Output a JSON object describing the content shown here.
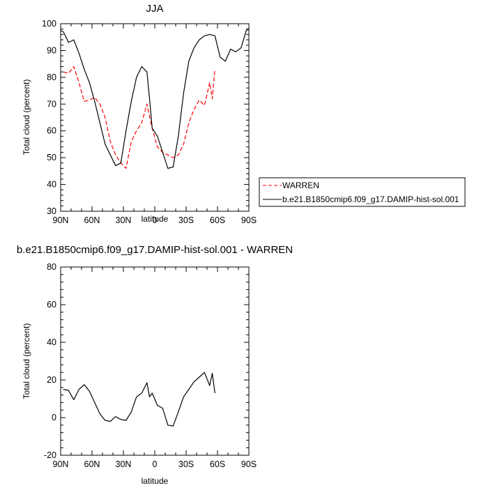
{
  "chart_data": [
    {
      "type": "line",
      "title": "JJA",
      "xlabel": "latitude",
      "ylabel": "Total cloud (percent)",
      "xlim": [
        -90,
        90
      ],
      "ylim": [
        30,
        100
      ],
      "x_ticks": [
        -90,
        -60,
        -30,
        0,
        30,
        60,
        90
      ],
      "x_tick_labels": [
        "90N",
        "60N",
        "30N",
        "0",
        "30S",
        "60S",
        "90S"
      ],
      "y_ticks": [
        30,
        40,
        50,
        60,
        70,
        80,
        90,
        100
      ],
      "legend": "right",
      "series": [
        {
          "name": "WARREN",
          "color": "#ff0000",
          "dash": "dashed",
          "x": [
            -87.5,
            -82.5,
            -77.5,
            -72.5,
            -67.5,
            -62.5,
            -57.5,
            -52.5,
            -47.5,
            -42.5,
            -37.5,
            -32.5,
            -27.5,
            -22.5,
            -17.5,
            -12.5,
            -7.5,
            -2.5,
            2.5,
            7.5,
            12.5,
            17.5,
            22.5,
            27.5,
            32.5,
            37.5,
            42.5,
            47.5,
            52.5,
            55.0,
            57.5
          ],
          "y": [
            82.0,
            81.5,
            84.0,
            78.0,
            71.0,
            71.5,
            72.5,
            70.0,
            65.0,
            56.0,
            51.0,
            48.0,
            46.0,
            56.0,
            60.0,
            63.0,
            70.0,
            61.0,
            54.0,
            52.0,
            51.0,
            50.0,
            51.0,
            55.0,
            63.0,
            68.0,
            71.5,
            69.5,
            78.0,
            72.0,
            83.0
          ]
        },
        {
          "name": "b.e21.B1850cmip6.f09_g17.DAMIP-hist-sol.001",
          "color": "#000000",
          "dash": "solid",
          "x": [
            -90,
            -87.5,
            -82.5,
            -77.5,
            -72.5,
            -67.5,
            -62.5,
            -57.5,
            -52.5,
            -47.5,
            -42.5,
            -37.5,
            -32.5,
            -27.5,
            -22.5,
            -17.5,
            -12.5,
            -7.5,
            -5.0,
            -2.5,
            2.5,
            7.5,
            12.5,
            17.5,
            22.5,
            27.5,
            32.5,
            37.5,
            42.5,
            47.5,
            52.5,
            57.5,
            62.5,
            67.5,
            72.5,
            77.5,
            82.5,
            87.5,
            90
          ],
          "y": [
            97.5,
            97.0,
            93.0,
            94.0,
            89.0,
            83.0,
            78.0,
            71.0,
            63.0,
            55.0,
            51.0,
            47.0,
            48.0,
            60.0,
            71.0,
            80.0,
            84.0,
            82.0,
            72.0,
            61.0,
            58.0,
            52.0,
            46.0,
            46.5,
            58.0,
            74.0,
            86.0,
            91.0,
            94.0,
            95.5,
            96.0,
            95.5,
            87.5,
            86.0,
            90.5,
            89.5,
            91.0,
            97.5,
            98.0
          ]
        }
      ]
    },
    {
      "type": "line",
      "title": "b.e21.B1850cmip6.f09_g17.DAMIP-hist-sol.001 - WARREN",
      "xlabel": "latitude",
      "ylabel": "Total cloud (percent)",
      "xlim": [
        -90,
        90
      ],
      "ylim": [
        -20,
        80
      ],
      "x_ticks": [
        -90,
        -60,
        -30,
        0,
        30,
        60,
        90
      ],
      "x_tick_labels": [
        "90N",
        "60N",
        "30N",
        "0",
        "30S",
        "60S",
        "90S"
      ],
      "y_ticks": [
        -20,
        0,
        20,
        40,
        60,
        80
      ],
      "series": [
        {
          "color": "#000000",
          "dash": "solid",
          "x": [
            -87.5,
            -82.5,
            -77.5,
            -72.5,
            -67.5,
            -62.5,
            -57.5,
            -52.5,
            -47.5,
            -42.5,
            -37.5,
            -32.5,
            -27.5,
            -22.5,
            -17.5,
            -12.5,
            -7.5,
            -5.0,
            -2.5,
            2.5,
            7.5,
            12.5,
            17.5,
            22.5,
            27.5,
            32.5,
            37.5,
            42.5,
            47.5,
            52.5,
            55.0,
            57.5
          ],
          "y": [
            15.0,
            14.5,
            9.5,
            15.0,
            17.5,
            14.0,
            8.0,
            2.0,
            -1.5,
            -2.0,
            0.5,
            -1.0,
            -1.5,
            3.0,
            11.0,
            13.0,
            18.5,
            11.0,
            13.0,
            6.5,
            5.0,
            -4.0,
            -4.5,
            3.0,
            11.0,
            15.0,
            19.0,
            21.5,
            24.0,
            17.0,
            23.5,
            13.0
          ]
        }
      ]
    }
  ]
}
